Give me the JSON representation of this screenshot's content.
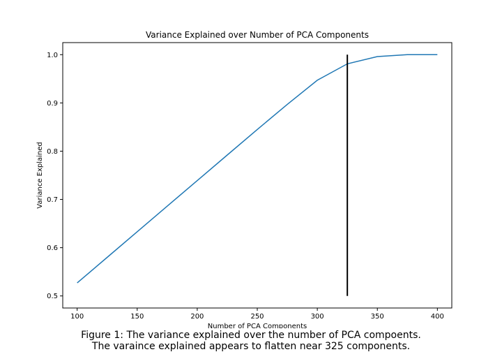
{
  "chart_data": {
    "type": "line",
    "title": "Variance Explained over Number of PCA Components",
    "xlabel": "Number of PCA Components",
    "ylabel": "Variance Explained",
    "xlim": [
      88,
      412
    ],
    "ylim": [
      0.475,
      1.025
    ],
    "x_ticks": [
      100,
      150,
      200,
      250,
      300,
      350,
      400
    ],
    "y_ticks": [
      0.5,
      0.6,
      0.7,
      0.8,
      0.9,
      1.0
    ],
    "grid": false,
    "series": [
      {
        "color": "#1f77b4",
        "x": [
          100,
          125,
          150,
          175,
          200,
          225,
          250,
          275,
          300,
          325,
          350,
          375,
          400
        ],
        "y": [
          0.527,
          0.58,
          0.633,
          0.686,
          0.739,
          0.792,
          0.845,
          0.897,
          0.947,
          0.981,
          0.996,
          1.0,
          1.0
        ]
      }
    ],
    "annotations": [
      {
        "type": "vertical-line",
        "x": 325,
        "y_from": 0.5,
        "y_to": 1.0,
        "color": "#000000"
      }
    ]
  },
  "caption": {
    "line1": "Figure 1: The variance explained over the number of PCA compoents.",
    "line2": "The varaince explained appears to flatten near 325 components."
  }
}
